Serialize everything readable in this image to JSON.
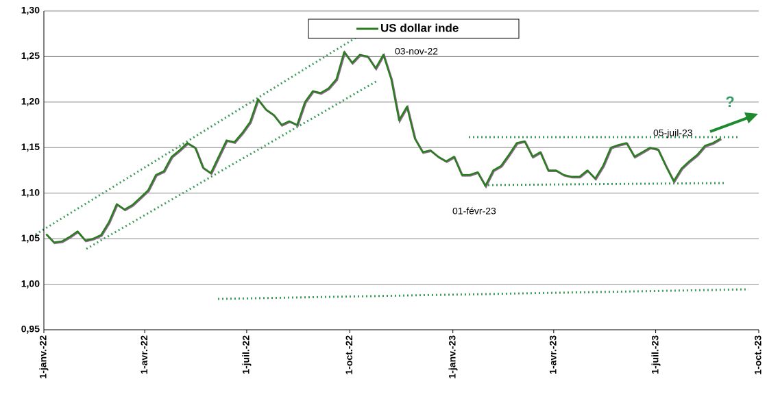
{
  "chart_data": {
    "type": "line",
    "legend": "US dollar inde",
    "annotations": [
      "03-nov-22",
      "01-févr-23",
      "05-juil-23",
      "?"
    ],
    "x": [
      "2022-01-03",
      "2022-01-10",
      "2022-01-17",
      "2022-01-24",
      "2022-01-31",
      "2022-02-07",
      "2022-02-14",
      "2022-02-21",
      "2022-02-28",
      "2022-03-07",
      "2022-03-14",
      "2022-03-21",
      "2022-03-28",
      "2022-04-04",
      "2022-04-11",
      "2022-04-18",
      "2022-04-25",
      "2022-05-02",
      "2022-05-09",
      "2022-05-16",
      "2022-05-23",
      "2022-05-30",
      "2022-06-06",
      "2022-06-13",
      "2022-06-20",
      "2022-06-27",
      "2022-07-04",
      "2022-07-11",
      "2022-07-18",
      "2022-07-25",
      "2022-08-01",
      "2022-08-08",
      "2022-08-15",
      "2022-08-22",
      "2022-08-29",
      "2022-09-05",
      "2022-09-12",
      "2022-09-19",
      "2022-09-26",
      "2022-10-03",
      "2022-10-10",
      "2022-10-17",
      "2022-10-24",
      "2022-10-31",
      "2022-11-07",
      "2022-11-14",
      "2022-11-21",
      "2022-11-28",
      "2022-12-05",
      "2022-12-12",
      "2022-12-19",
      "2022-12-26",
      "2023-01-02",
      "2023-01-09",
      "2023-01-16",
      "2023-01-23",
      "2023-01-30",
      "2023-02-06",
      "2023-02-13",
      "2023-02-20",
      "2023-02-27",
      "2023-03-06",
      "2023-03-13",
      "2023-03-20",
      "2023-03-27",
      "2023-04-03",
      "2023-04-10",
      "2023-04-17",
      "2023-04-24",
      "2023-05-01",
      "2023-05-08",
      "2023-05-15",
      "2023-05-22",
      "2023-05-29",
      "2023-06-05",
      "2023-06-12",
      "2023-06-19",
      "2023-06-26",
      "2023-07-03",
      "2023-07-10",
      "2023-07-17",
      "2023-07-24",
      "2023-07-31",
      "2023-08-07",
      "2023-08-14",
      "2023-08-21",
      "2023-08-28"
    ],
    "series": [
      {
        "name": "US dollar inde",
        "color": "#2a7d1f",
        "values": [
          1.055,
          1.046,
          1.047,
          1.052,
          1.058,
          1.048,
          1.05,
          1.054,
          1.068,
          1.088,
          1.082,
          1.087,
          1.095,
          1.103,
          1.12,
          1.124,
          1.14,
          1.147,
          1.155,
          1.15,
          1.128,
          1.122,
          1.14,
          1.158,
          1.156,
          1.166,
          1.178,
          1.203,
          1.192,
          1.186,
          1.175,
          1.179,
          1.175,
          1.2,
          1.212,
          1.21,
          1.215,
          1.225,
          1.255,
          1.243,
          1.252,
          1.25,
          1.237,
          1.252,
          1.225,
          1.18,
          1.195,
          1.16,
          1.145,
          1.147,
          1.14,
          1.135,
          1.14,
          1.12,
          1.12,
          1.123,
          1.108,
          1.125,
          1.13,
          1.142,
          1.155,
          1.157,
          1.14,
          1.145,
          1.125,
          1.125,
          1.12,
          1.118,
          1.118,
          1.125,
          1.116,
          1.13,
          1.15,
          1.153,
          1.155,
          1.14,
          1.145,
          1.15,
          1.148,
          1.13,
          1.113,
          1.127,
          1.135,
          1.142,
          1.152,
          1.155,
          1.16
        ]
      }
    ],
    "xlim": [
      "2022-01-01",
      "2023-10-01"
    ],
    "xticks": [
      {
        "value": "2022-01-01",
        "label": "1-janv.-22"
      },
      {
        "value": "2022-04-01",
        "label": "1-avr.-22"
      },
      {
        "value": "2022-07-01",
        "label": "1-juil.-22"
      },
      {
        "value": "2022-10-01",
        "label": "1-oct.-22"
      },
      {
        "value": "2023-01-01",
        "label": "1-janv.-23"
      },
      {
        "value": "2023-04-01",
        "label": "1-avr.-23"
      },
      {
        "value": "2023-07-01",
        "label": "1-juil.-23"
      },
      {
        "value": "2023-10-01",
        "label": "1-oct.-23"
      }
    ],
    "ylim": [
      0.95,
      1.3
    ],
    "yticks": [
      {
        "value": 0.95,
        "label": "0,95"
      },
      {
        "value": 1.0,
        "label": "1,00"
      },
      {
        "value": 1.05,
        "label": "1,05"
      },
      {
        "value": 1.1,
        "label": "1,10"
      },
      {
        "value": 1.15,
        "label": "1,15"
      },
      {
        "value": 1.2,
        "label": "1,20"
      },
      {
        "value": 1.25,
        "label": "1,25"
      },
      {
        "value": 1.3,
        "label": "1,30"
      }
    ],
    "grid": true
  }
}
